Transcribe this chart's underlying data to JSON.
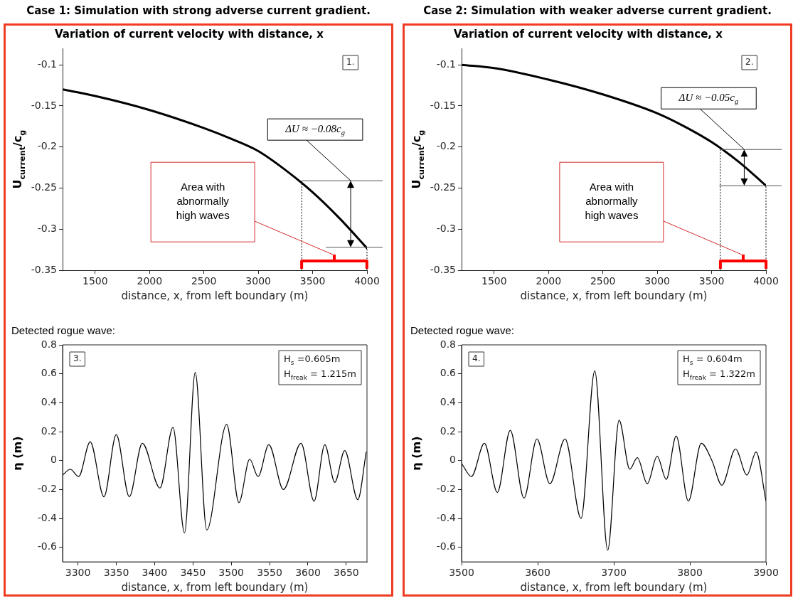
{
  "chart_data": [
    {
      "type": "line",
      "title": "Case 1: Simulation with strong adverse current gradient.",
      "subtitle": "Variation of current velocity with distance, x",
      "xlabel": "distance, x, from left boundary (m)",
      "ylabel": "U$_{current}$/c$_{g}$",
      "xlim": [
        1200,
        4000
      ],
      "ylim": [
        -0.35,
        -0.08
      ],
      "xticks": [
        1500,
        2000,
        2500,
        3000,
        3500,
        4000
      ],
      "yticks": [
        -0.35,
        -0.3,
        -0.25,
        -0.2,
        -0.15,
        -0.1
      ],
      "marker": "none",
      "series": [
        {
          "color": "#000000",
          "x": [
            1200,
            1500,
            2000,
            2500,
            2750,
            3000,
            3250,
            3500,
            3750,
            4000
          ],
          "values": [
            -0.13,
            -0.138,
            -0.155,
            -0.177,
            -0.19,
            -0.205,
            -0.228,
            -0.255,
            -0.287,
            -0.323
          ]
        }
      ],
      "ref_lines": [
        {
          "axis": "y",
          "value": -0.241
        },
        {
          "axis": "y",
          "value": -0.322
        },
        {
          "axis": "x",
          "value": 3400,
          "line_style": "dotted"
        },
        {
          "axis": "x",
          "value": 4000,
          "line_style": "dotted"
        }
      ],
      "annotations": [
        "1.",
        {
          "text": "ΔU ≈ −0.08c$_{g}$",
          "x": 3850,
          "y": -0.241
        },
        "Area with abnormally high waves"
      ]
    },
    {
      "type": "line",
      "title": "Case 2: Simulation with weaker adverse current gradient.",
      "subtitle": "Variation of current velocity with distance, x",
      "xlabel": "distance, x, from left boundary (m)",
      "ylabel": "U$_{current}$/c$_{g}$",
      "xlim": [
        1200,
        4000
      ],
      "ylim": [
        -0.35,
        -0.08
      ],
      "xticks": [
        1500,
        2000,
        2500,
        3000,
        3500,
        4000
      ],
      "yticks": [
        -0.35,
        -0.3,
        -0.25,
        -0.2,
        -0.15,
        -0.1
      ],
      "marker": "none",
      "series": [
        {
          "color": "#000000",
          "x": [
            1200,
            1500,
            2000,
            2500,
            3000,
            3250,
            3500,
            3750,
            4000
          ],
          "values": [
            -0.1,
            -0.104,
            -0.118,
            -0.136,
            -0.159,
            -0.175,
            -0.194,
            -0.218,
            -0.247
          ]
        }
      ],
      "ref_lines": [
        {
          "axis": "y",
          "value": -0.203
        },
        {
          "axis": "y",
          "value": -0.247
        },
        {
          "axis": "x",
          "value": 3580,
          "line_style": "dotted"
        },
        {
          "axis": "x",
          "value": 4000,
          "line_style": "dotted"
        }
      ],
      "annotations": [
        "2.",
        {
          "text": "ΔU ≈ −0.05c$_{g}$",
          "x": 3800,
          "y": -0.203
        },
        "Area with abnormally high waves"
      ]
    },
    {
      "type": "line",
      "title": "Detected rogue wave:",
      "xlabel": "distance, x, from left boundary (m)",
      "ylabel": "η (m)",
      "xlim": [
        3280,
        3677
      ],
      "ylim": [
        -0.7,
        0.8
      ],
      "xticks": [
        3300,
        3350,
        3400,
        3450,
        3500,
        3550,
        3600,
        3650
      ],
      "yticks": [
        -0.6,
        -0.4,
        -0.2,
        0,
        0.2,
        0.4,
        0.6,
        0.8
      ],
      "marker": "none",
      "series": [
        {
          "color": "#000000",
          "x": [
            3280,
            3290,
            3301,
            3316,
            3334,
            3350,
            3367,
            3384,
            3407,
            3424,
            3439,
            3453,
            3468,
            3494,
            3510,
            3524,
            3535,
            3549,
            3568,
            3591,
            3608,
            3622,
            3635,
            3648,
            3665,
            3676
          ],
          "values": [
            -0.1,
            -0.06,
            -0.11,
            0.13,
            -0.25,
            0.18,
            -0.25,
            0.12,
            -0.19,
            0.23,
            -0.5,
            0.61,
            -0.48,
            0.25,
            -0.29,
            0.01,
            -0.11,
            0.11,
            -0.2,
            0.12,
            -0.28,
            0.11,
            -0.15,
            0.07,
            -0.27,
            0.06
          ]
        }
      ],
      "annotations": [
        "3.",
        "H$_{s}$ =0.605m",
        "H$_{freak}$ = 1.215m"
      ]
    },
    {
      "type": "line",
      "title": "Detected rogue wave:",
      "xlabel": "distance, x, from left boundary (m)",
      "ylabel": "η (m)",
      "xlim": [
        3500,
        3900
      ],
      "ylim": [
        -0.7,
        0.8
      ],
      "xticks": [
        3500,
        3600,
        3700,
        3800,
        3900
      ],
      "yticks": [
        -0.6,
        -0.4,
        -0.2,
        0,
        0.2,
        0.4,
        0.6,
        0.8
      ],
      "marker": "none",
      "series": [
        {
          "color": "#000000",
          "x": [
            3500,
            3513,
            3530,
            3547,
            3564,
            3582,
            3599,
            3616,
            3636,
            3657,
            3675,
            3692,
            3707,
            3721,
            3731,
            3744,
            3757,
            3769,
            3782,
            3798,
            3815,
            3829,
            3842,
            3860,
            3875,
            3887,
            3900
          ],
          "values": [
            -0.02,
            -0.11,
            0.12,
            -0.22,
            0.21,
            -0.26,
            0.15,
            -0.16,
            0.15,
            -0.4,
            0.62,
            -0.62,
            0.28,
            -0.06,
            0.02,
            -0.16,
            0.03,
            -0.13,
            0.17,
            -0.28,
            0.12,
            0,
            -0.17,
            0.08,
            -0.1,
            0.06,
            -0.28
          ]
        }
      ],
      "annotations": [
        "4.",
        "H$_{s}$ = 0.604m",
        "H$_{freak}$ = 1.322m"
      ]
    }
  ]
}
